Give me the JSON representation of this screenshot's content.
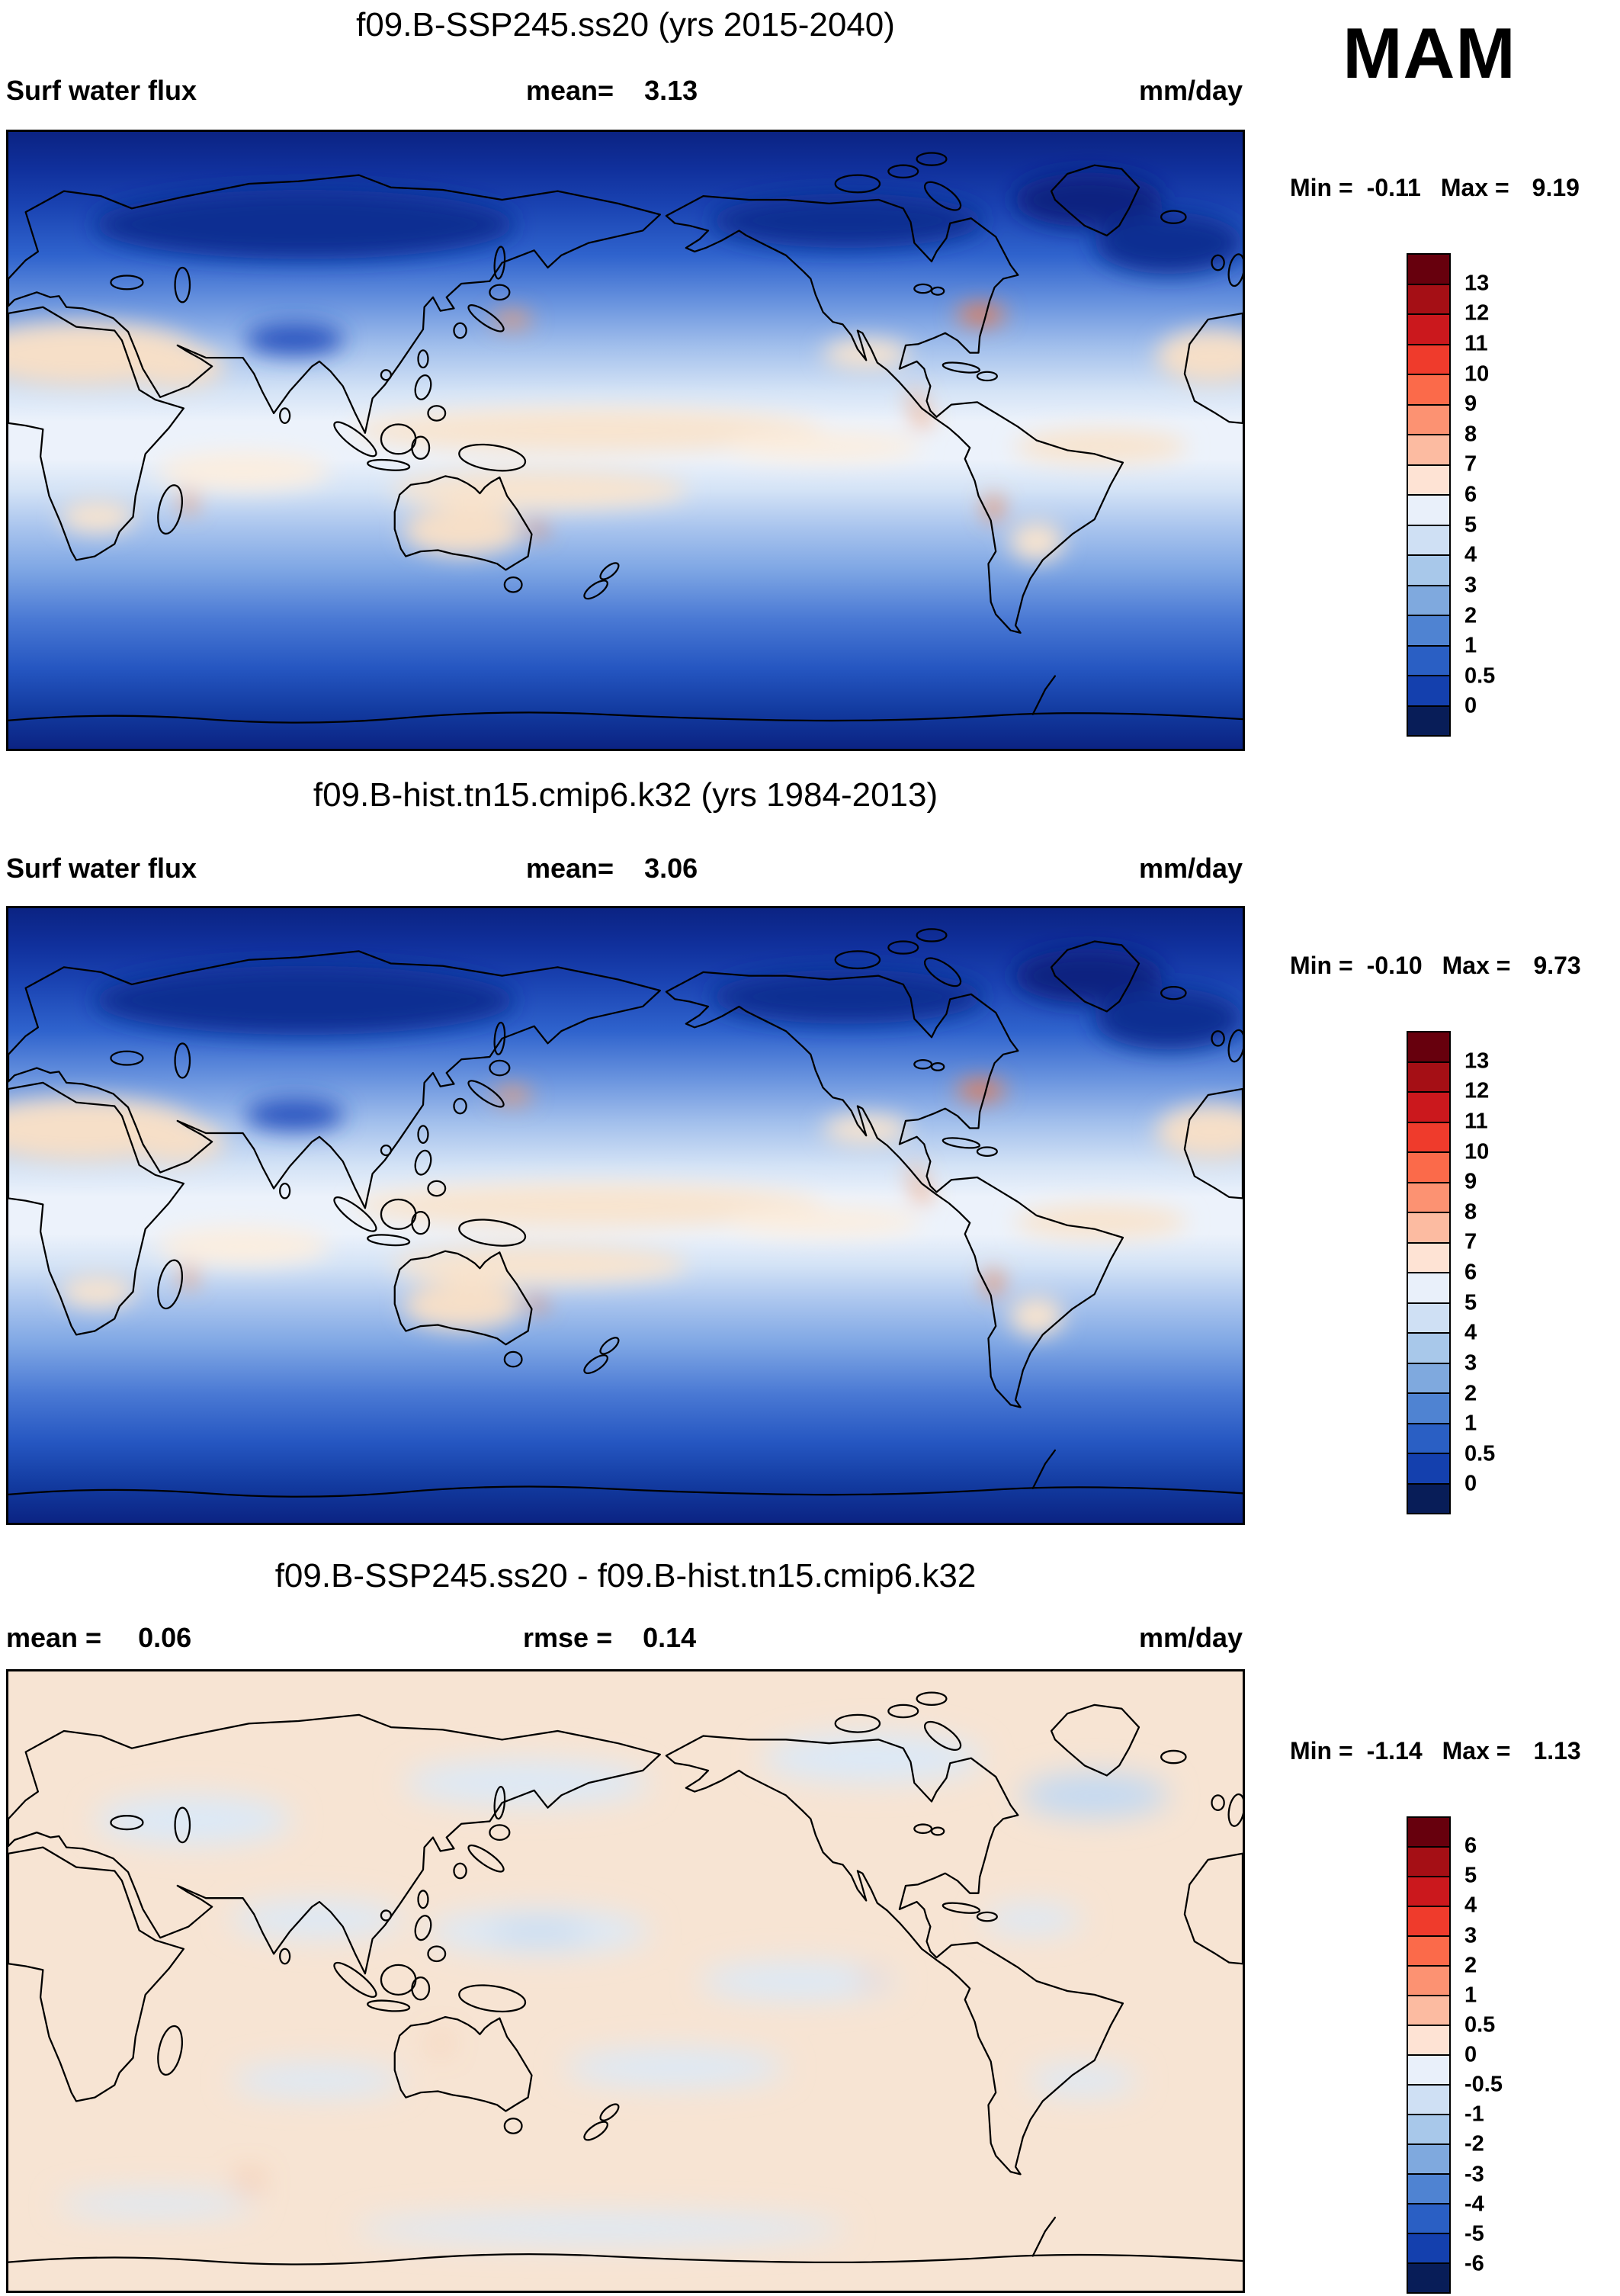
{
  "season": "MAM",
  "panels": [
    {
      "title": "f09.B-SSP245.ss20 (yrs 2015-2040)",
      "left_label": "Surf water flux",
      "mid_label": "mean=",
      "mid_value": "3.13",
      "units": "mm/day",
      "min_label": "Min =",
      "min_value": "-0.11",
      "max_label": "Max =",
      "max_value": "9.19",
      "colorbar": {
        "tick_labels": [
          "13",
          "12",
          "11",
          "10",
          "9",
          "8",
          "7",
          "6",
          "5",
          "4",
          "3",
          "2",
          "1",
          "0.5",
          "0"
        ],
        "colors_top_to_bottom": [
          "#67000d",
          "#a50f15",
          "#cb181d",
          "#ef3b2c",
          "#fb6a4a",
          "#fc9272",
          "#fcbba1",
          "#fee3d4",
          "#e9f0fa",
          "#cfe0f4",
          "#a8c8ea",
          "#7fa9de",
          "#4f83d2",
          "#2a5fc4",
          "#1440ae",
          "#081d58"
        ]
      }
    },
    {
      "title": "f09.B-hist.tn15.cmip6.k32 (yrs 1984-2013)",
      "left_label": "Surf water flux",
      "mid_label": "mean=",
      "mid_value": "3.06",
      "units": "mm/day",
      "min_label": "Min =",
      "min_value": "-0.10",
      "max_label": "Max =",
      "max_value": "9.73",
      "colorbar": {
        "tick_labels": [
          "13",
          "12",
          "11",
          "10",
          "9",
          "8",
          "7",
          "6",
          "5",
          "4",
          "3",
          "2",
          "1",
          "0.5",
          "0"
        ],
        "colors_top_to_bottom": [
          "#67000d",
          "#a50f15",
          "#cb181d",
          "#ef3b2c",
          "#fb6a4a",
          "#fc9272",
          "#fcbba1",
          "#fee3d4",
          "#e9f0fa",
          "#cfe0f4",
          "#a8c8ea",
          "#7fa9de",
          "#4f83d2",
          "#2a5fc4",
          "#1440ae",
          "#081d58"
        ]
      }
    },
    {
      "title": "f09.B-SSP245.ss20 - f09.B-hist.tn15.cmip6.k32",
      "left_label": "mean =",
      "left_value": "0.06",
      "mid_label": "rmse =",
      "mid_value": "0.14",
      "units": "mm/day",
      "min_label": "Min =",
      "min_value": "-1.14",
      "max_label": "Max =",
      "max_value": "1.13",
      "colorbar": {
        "tick_labels": [
          "6",
          "5",
          "4",
          "3",
          "2",
          "1",
          "0.5",
          "0",
          "-0.5",
          "-1",
          "-2",
          "-3",
          "-4",
          "-5",
          "-6"
        ],
        "colors_top_to_bottom": [
          "#67000d",
          "#a50f15",
          "#cb181d",
          "#ef3b2c",
          "#fb6a4a",
          "#fc9272",
          "#fcbba1",
          "#fee3d4",
          "#e9f0fa",
          "#cfe0f4",
          "#a8c8ea",
          "#7fa9de",
          "#4f83d2",
          "#2a5fc4",
          "#1440ae",
          "#081d58"
        ]
      }
    }
  ],
  "chart_data": [
    {
      "type": "heatmap",
      "map_type": "global filled-contour map, equirectangular, Pacific-centered (0E-360E, 90N-90S)",
      "title": "f09.B-SSP245.ss20 (yrs 2015-2040)",
      "variable": "Surf water flux",
      "season": "MAM",
      "units": "mm/day",
      "mean": 3.13,
      "min": -0.11,
      "max": 9.19,
      "contour_levels": [
        0,
        0.5,
        1,
        2,
        3,
        4,
        5,
        6,
        7,
        8,
        9,
        10,
        11,
        12,
        13
      ],
      "palette_top_to_bottom": [
        "#67000d",
        "#a50f15",
        "#cb181d",
        "#ef3b2c",
        "#fb6a4a",
        "#fc9272",
        "#fcbba1",
        "#fee3d4",
        "#e9f0fa",
        "#cfe0f4",
        "#a8c8ea",
        "#7fa9de",
        "#4f83d2",
        "#2a5fc4",
        "#1440ae",
        "#081d58"
      ],
      "legend_position": "right",
      "pattern_summary": "Dark navy (near 0 mm/day) over poles and high latitudes; mid blues in mid-latitudes; pale blue to cream (5-7 mm/day) across tropics and subtropics; small orange-red maxima (>7) over the Gulf Stream, Kuroshio and scattered tropical coastal spots; black coastline overlay."
    },
    {
      "type": "heatmap",
      "map_type": "global filled-contour map, equirectangular, Pacific-centered (0E-360E, 90N-90S)",
      "title": "f09.B-hist.tn15.cmip6.k32 (yrs 1984-2013)",
      "variable": "Surf water flux",
      "season": "MAM",
      "units": "mm/day",
      "mean": 3.06,
      "min": -0.1,
      "max": 9.73,
      "contour_levels": [
        0,
        0.5,
        1,
        2,
        3,
        4,
        5,
        6,
        7,
        8,
        9,
        10,
        11,
        12,
        13
      ],
      "palette_top_to_bottom": [
        "#67000d",
        "#a50f15",
        "#cb181d",
        "#ef3b2c",
        "#fb6a4a",
        "#fc9272",
        "#fcbba1",
        "#fee3d4",
        "#e9f0fa",
        "#cfe0f4",
        "#a8c8ea",
        "#7fa9de",
        "#4f83d2",
        "#2a5fc4",
        "#1440ae",
        "#081d58"
      ],
      "legend_position": "right",
      "pattern_summary": "Same zonal structure as the SSP245 case: dark blue polar bands, blue mid-latitudes, pale tropics with cream subtropical patches and small warm-colored western-boundary-current maxima."
    },
    {
      "type": "heatmap",
      "map_type": "global filled-contour difference map, equirectangular, Pacific-centered (0E-360E, 90N-90S)",
      "title": "f09.B-SSP245.ss20 - f09.B-hist.tn15.cmip6.k32",
      "statistic": "difference",
      "season": "MAM",
      "units": "mm/day",
      "mean": 0.06,
      "rmse": 0.14,
      "min": -1.14,
      "max": 1.13,
      "contour_levels": [
        -6,
        -5,
        -4,
        -3,
        -2,
        -1,
        -0.5,
        0,
        0.5,
        1,
        2,
        3,
        4,
        5,
        6
      ],
      "palette_top_to_bottom": [
        "#67000d",
        "#a50f15",
        "#cb181d",
        "#ef3b2c",
        "#fb6a4a",
        "#fc9272",
        "#fcbba1",
        "#fee3d4",
        "#e9f0fa",
        "#cfe0f4",
        "#a8c8ea",
        "#7fa9de",
        "#4f83d2",
        "#2a5fc4",
        "#1440ae",
        "#081d58"
      ],
      "legend_position": "right",
      "pattern_summary": "Differences are near zero almost everywhere: a uniform cream field (0 to +0.5 mm/day) with scattered weak negative patches (0 to -0.5, pale blue) over oceans and high latitudes and a few tiny positive spots."
    }
  ]
}
